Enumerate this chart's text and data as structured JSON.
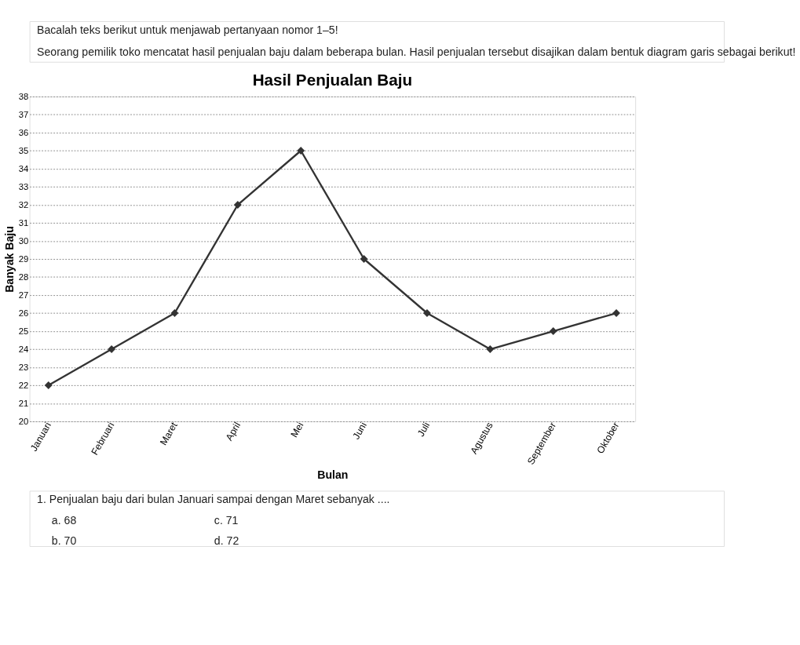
{
  "chart_data": {
    "type": "line",
    "title": "Hasil Penjualan Baju",
    "xlabel": "Bulan",
    "ylabel": "Banyak Baju",
    "categories": [
      "Januari",
      "Februari",
      "Maret",
      "April",
      "Mei",
      "Juni",
      "Juli",
      "Agustus",
      "September",
      "Oktober"
    ],
    "series": [
      {
        "color": "#333333",
        "values": [
          22,
          24,
          26,
          32,
          35,
          29,
          26,
          24,
          25,
          26
        ]
      }
    ],
    "ylim": [
      20,
      38
    ],
    "yticks": [
      20,
      21,
      22,
      23,
      24,
      25,
      26,
      27,
      28,
      29,
      30,
      31,
      32,
      33,
      34,
      35,
      36,
      37,
      38
    ],
    "grid": "y",
    "marker": "diamond",
    "line_style": "solid",
    "annotations": [
      "Bacalah teks berikut untuk menjawab pertanyaan nomor 1–5!",
      "Seorang pemilik toko mencatat hasil penjualan baju dalam beberapa bulan. Hasil penjualan tersebut disajikan dalam bentuk diagram garis sebagai berikut!",
      "1. Penjualan baju dari bulan Januari sampai dengan Maret sebanyak ....",
      "a. 68",
      "c. 71",
      "b. 70",
      "d. 72"
    ]
  }
}
